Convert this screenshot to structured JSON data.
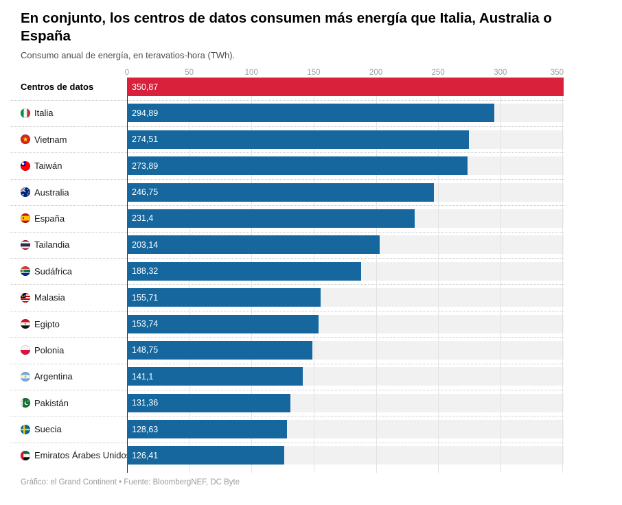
{
  "chart_data": {
    "type": "bar",
    "orientation": "horizontal",
    "title": "En conjunto, los centros de datos consumen más energía que Italia, Australia o España",
    "subtitle": "Consumo anual de energía, en teravatios-hora (TWh).",
    "footer": "Gráfico: el Grand Continent • Fuente: BloombergNEF, DC Byte",
    "unit": "TWh",
    "xlim": [
      0,
      350.87
    ],
    "xticks": [
      0,
      50,
      100,
      150,
      200,
      250,
      300,
      350
    ],
    "grid": true,
    "legend": "none",
    "colors": {
      "highlight": "#d9213c",
      "bar": "#15679e",
      "track": "#f1f1f1",
      "axis_line": "#2b2b2b",
      "gridline": "#e3e3e3",
      "tick_label": "#9e9e9e"
    },
    "rows": [
      {
        "label": "Centros de datos",
        "value": 350.87,
        "value_label": "350,87",
        "flag": null,
        "highlight": true,
        "bold": true
      },
      {
        "label": "Italia",
        "value": 294.89,
        "value_label": "294,89",
        "flag": "italy",
        "highlight": false,
        "bold": false
      },
      {
        "label": "Vietnam",
        "value": 274.51,
        "value_label": "274,51",
        "flag": "vietnam",
        "highlight": false,
        "bold": false
      },
      {
        "label": "Taiwán",
        "value": 273.89,
        "value_label": "273,89",
        "flag": "taiwan",
        "highlight": false,
        "bold": false
      },
      {
        "label": "Australia",
        "value": 246.75,
        "value_label": "246,75",
        "flag": "australia",
        "highlight": false,
        "bold": false
      },
      {
        "label": "España",
        "value": 231.4,
        "value_label": "231,4",
        "flag": "spain",
        "highlight": false,
        "bold": false
      },
      {
        "label": "Tailandia",
        "value": 203.14,
        "value_label": "203,14",
        "flag": "thailand",
        "highlight": false,
        "bold": false
      },
      {
        "label": "Sudáfrica",
        "value": 188.32,
        "value_label": "188,32",
        "flag": "southafrica",
        "highlight": false,
        "bold": false
      },
      {
        "label": "Malasia",
        "value": 155.71,
        "value_label": "155,71",
        "flag": "malaysia",
        "highlight": false,
        "bold": false
      },
      {
        "label": "Egipto",
        "value": 153.74,
        "value_label": "153,74",
        "flag": "egypt",
        "highlight": false,
        "bold": false
      },
      {
        "label": "Polonia",
        "value": 148.75,
        "value_label": "148,75",
        "flag": "poland",
        "highlight": false,
        "bold": false
      },
      {
        "label": "Argentina",
        "value": 141.1,
        "value_label": "141,1",
        "flag": "argentina",
        "highlight": false,
        "bold": false
      },
      {
        "label": "Pakistán",
        "value": 131.36,
        "value_label": "131,36",
        "flag": "pakistan",
        "highlight": false,
        "bold": false
      },
      {
        "label": "Suecia",
        "value": 128.63,
        "value_label": "128,63",
        "flag": "sweden",
        "highlight": false,
        "bold": false
      },
      {
        "label": "Emiratos Árabes Unidos",
        "value": 126.41,
        "value_label": "126,41",
        "flag": "uae",
        "highlight": false,
        "bold": false
      }
    ]
  }
}
